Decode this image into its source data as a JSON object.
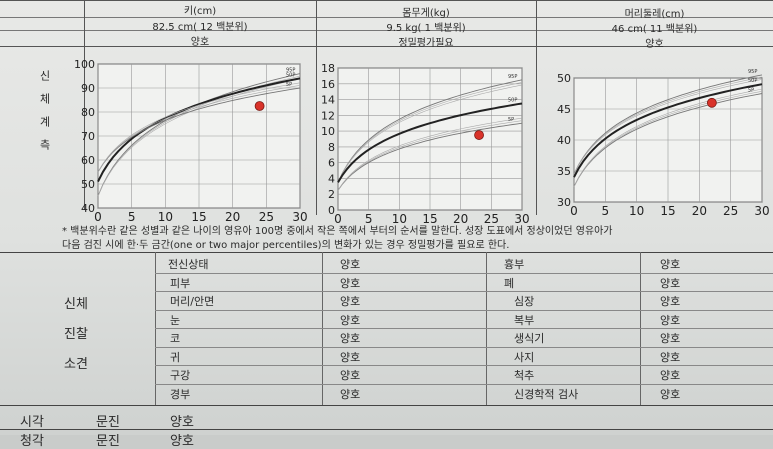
{
  "header": {
    "height_title": "키(cm)",
    "height_value": "82.5    cm(    12        백분위)",
    "height_status": "양호",
    "weight_title": "몸무게(kg)",
    "weight_value": "9.5    kg(    1        백분위)",
    "weight_status": "정밀평가필요",
    "head_title": "머리둘레(cm)",
    "head_value": "46    cm(    11      백분위)",
    "head_status": "양호"
  },
  "side_label": "신체계측",
  "note_line1": "* 백분위수란 같은 성별과 같은 나이의 영유아 100명 중에서 작은 쪽에서 부터의 순서를 말한다. 성장 도표에서 정상이었던 영유아가",
  "note_line2": "다음 검진 시에 한·두 금간(one or two major percentiles)의 변화가 있는 경우 정밀평가를 필요로 한다.",
  "exam": {
    "section_label_1": "신체",
    "section_label_2": "진찰",
    "section_label_3": "소견",
    "left_items": [
      "전신상태",
      "피부",
      "머리/안면",
      "눈",
      "코",
      "귀",
      "구강",
      "경부"
    ],
    "left_values": [
      "양호",
      "양호",
      "양호",
      "양호",
      "양호",
      "양호",
      "양호",
      "양호"
    ],
    "right_items": [
      "흉부",
      "폐",
      "심장",
      "복부",
      "생식기",
      "사지",
      "척추",
      "신경학적 검사"
    ],
    "right_values": [
      "양호",
      "양호",
      "양호",
      "양호",
      "양호",
      "양호",
      "양호",
      "양호"
    ]
  },
  "bottom": {
    "label1": "시각",
    "label2": "문진",
    "value": "양호",
    "label3": "청각",
    "label4": "문진",
    "value2": "양호"
  },
  "chart_data": [
    {
      "type": "line",
      "title": "",
      "xlabel": "",
      "ylabel": "",
      "xlim": [
        0,
        30
      ],
      "ylim": [
        40,
        100
      ],
      "xticks": [
        0,
        5,
        10,
        15,
        20,
        25,
        30
      ],
      "yticks": [
        40,
        50,
        60,
        70,
        80,
        90,
        100
      ],
      "percentile_labels": [
        "95P",
        "50P",
        "5P"
      ],
      "point": {
        "x": 24,
        "y": 82.5
      },
      "point_color": "#d9332a"
    },
    {
      "type": "line",
      "title": "",
      "xlabel": "",
      "ylabel": "",
      "xlim": [
        0,
        30
      ],
      "ylim": [
        0,
        18
      ],
      "xticks": [
        0,
        5,
        10,
        15,
        20,
        25,
        30
      ],
      "yticks": [
        0,
        2,
        4,
        6,
        8,
        10,
        12,
        14,
        16,
        18
      ],
      "percentile_labels": [
        "95P",
        "50P",
        "5P"
      ],
      "point": {
        "x": 23,
        "y": 9.5
      },
      "point_color": "#d9332a"
    },
    {
      "type": "line",
      "title": "",
      "xlabel": "",
      "ylabel": "",
      "xlim": [
        0,
        30
      ],
      "ylim": [
        30,
        50
      ],
      "xticks": [
        0,
        5,
        10,
        15,
        20,
        25,
        30
      ],
      "yticks": [
        30,
        35,
        40,
        45,
        50
      ],
      "percentile_labels": [
        "95P",
        "50P",
        "5P"
      ],
      "point": {
        "x": 22,
        "y": 46
      },
      "point_color": "#d9332a"
    }
  ]
}
